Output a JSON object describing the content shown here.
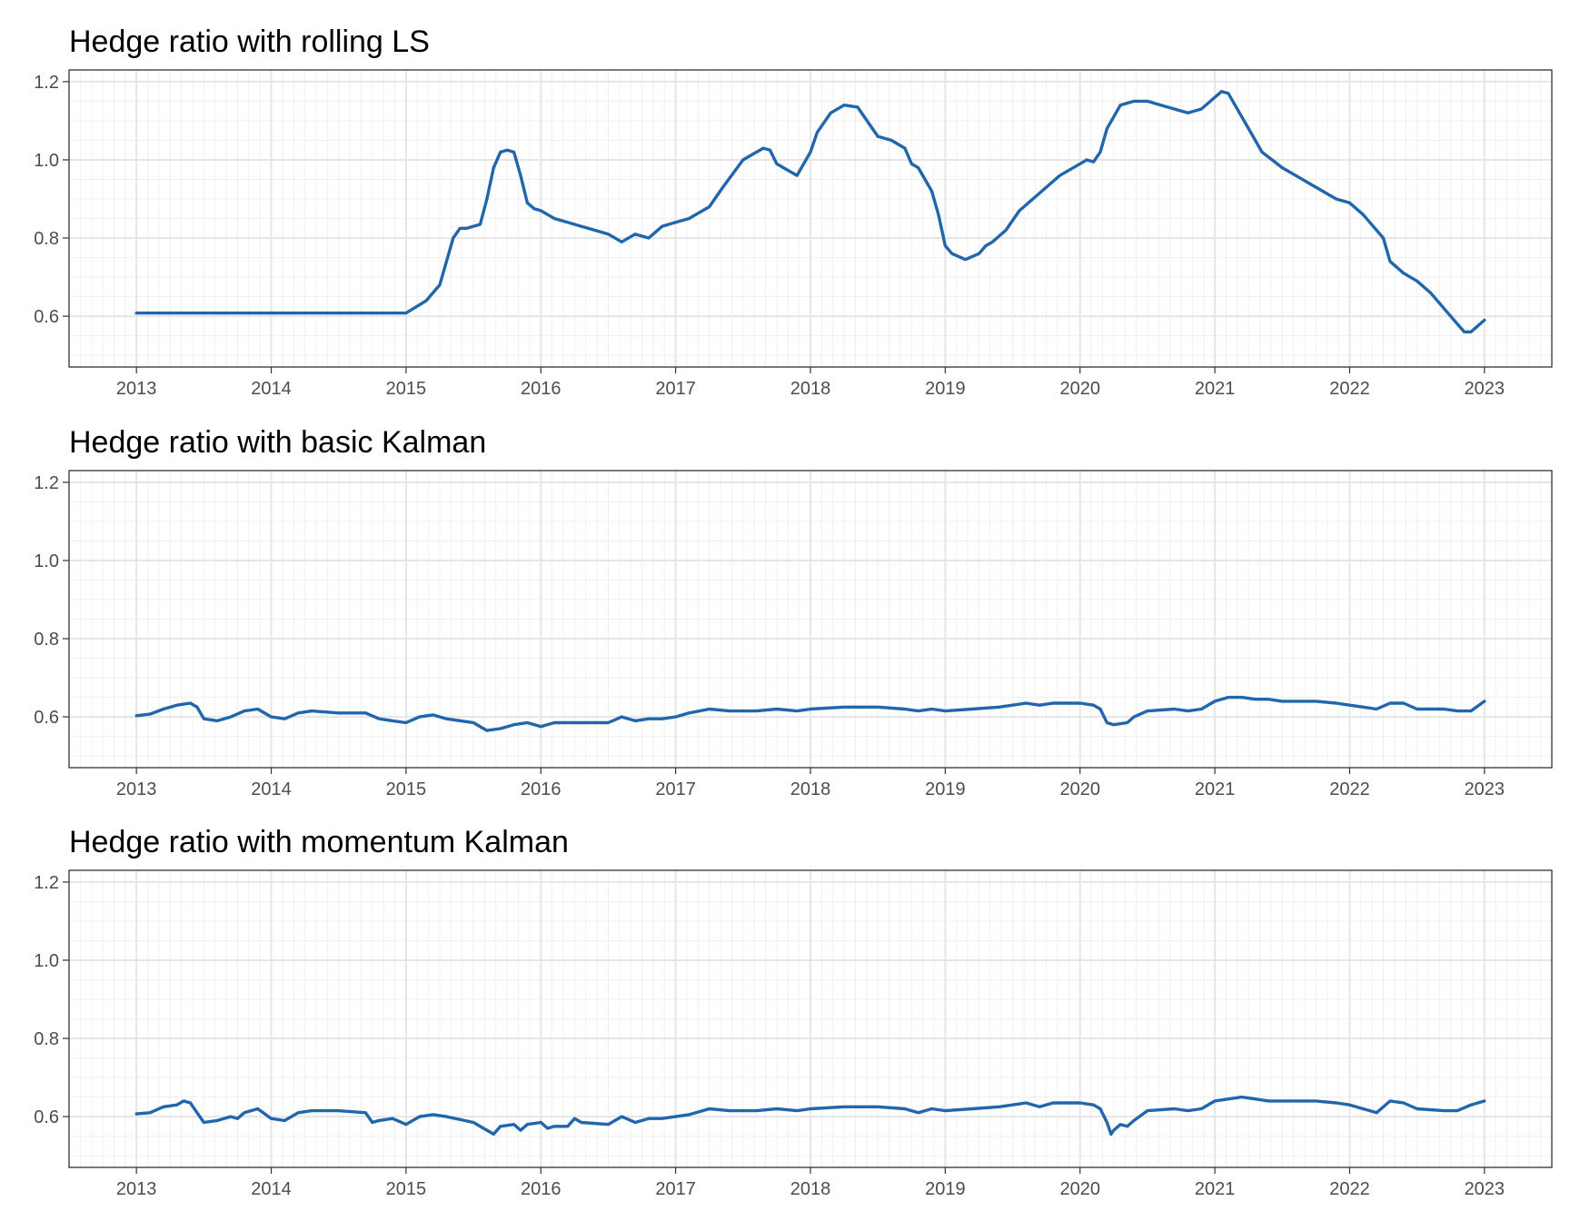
{
  "chart_data": [
    {
      "type": "line",
      "title": "Hedge ratio with rolling LS",
      "xlabel": "",
      "ylabel": "",
      "xlim": [
        2012.5,
        2023.5
      ],
      "ylim": [
        0.47,
        1.23
      ],
      "x_ticks": [
        "2013",
        "2014",
        "2015",
        "2016",
        "2017",
        "2018",
        "2019",
        "2020",
        "2021",
        "2022",
        "2023"
      ],
      "y_ticks": [
        "0.6",
        "0.8",
        "1.0",
        "1.2"
      ],
      "grid": true,
      "series_color": "#2166ac",
      "series": [
        {
          "x": [
            2013.0,
            2014.0,
            2015.0,
            2015.08,
            2015.15,
            2015.25,
            2015.3,
            2015.35,
            2015.4,
            2015.45,
            2015.5,
            2015.55,
            2015.6,
            2015.65,
            2015.7,
            2015.75,
            2015.8,
            2015.85,
            2015.9,
            2015.95,
            2016.0,
            2016.05,
            2016.1,
            2016.3,
            2016.5,
            2016.6,
            2016.7,
            2016.8,
            2016.9,
            2017.0,
            2017.1,
            2017.25,
            2017.35,
            2017.5,
            2017.6,
            2017.65,
            2017.7,
            2017.75,
            2017.8,
            2017.9,
            2018.0,
            2018.05,
            2018.15,
            2018.25,
            2018.35,
            2018.4,
            2018.5,
            2018.6,
            2018.7,
            2018.75,
            2018.8,
            2018.9,
            2018.95,
            2019.0,
            2019.05,
            2019.15,
            2019.25,
            2019.3,
            2019.35,
            2019.45,
            2019.55,
            2019.65,
            2019.75,
            2019.85,
            2020.0,
            2020.05,
            2020.1,
            2020.15,
            2020.2,
            2020.3,
            2020.4,
            2020.5,
            2020.6,
            2020.7,
            2020.8,
            2020.9,
            2021.0,
            2021.05,
            2021.1,
            2021.15,
            2021.25,
            2021.35,
            2021.5,
            2021.6,
            2021.75,
            2021.9,
            2022.0,
            2022.1,
            2022.15,
            2022.25,
            2022.3,
            2022.4,
            2022.5,
            2022.6,
            2022.75,
            2022.85,
            2022.9,
            2023.0
          ],
          "values": [
            0.608,
            0.608,
            0.608,
            0.625,
            0.64,
            0.68,
            0.74,
            0.8,
            0.825,
            0.825,
            0.83,
            0.835,
            0.9,
            0.98,
            1.02,
            1.025,
            1.02,
            0.96,
            0.89,
            0.875,
            0.87,
            0.86,
            0.85,
            0.83,
            0.81,
            0.79,
            0.81,
            0.8,
            0.83,
            0.84,
            0.85,
            0.88,
            0.93,
            1.0,
            1.02,
            1.03,
            1.025,
            0.99,
            0.98,
            0.96,
            1.02,
            1.07,
            1.12,
            1.14,
            1.135,
            1.11,
            1.06,
            1.05,
            1.03,
            0.99,
            0.98,
            0.92,
            0.86,
            0.78,
            0.76,
            0.745,
            0.76,
            0.78,
            0.79,
            0.82,
            0.87,
            0.9,
            0.93,
            0.96,
            0.99,
            1.0,
            0.995,
            1.02,
            1.08,
            1.14,
            1.15,
            1.15,
            1.14,
            1.13,
            1.12,
            1.13,
            1.16,
            1.175,
            1.17,
            1.14,
            1.08,
            1.02,
            0.98,
            0.96,
            0.93,
            0.9,
            0.89,
            0.86,
            0.84,
            0.8,
            0.74,
            0.71,
            0.69,
            0.66,
            0.6,
            0.56,
            0.56,
            0.59
          ]
        }
      ]
    },
    {
      "type": "line",
      "title": "Hedge ratio with basic Kalman",
      "xlabel": "",
      "ylabel": "",
      "xlim": [
        2012.5,
        2023.5
      ],
      "ylim": [
        0.47,
        1.23
      ],
      "x_ticks": [
        "2013",
        "2014",
        "2015",
        "2016",
        "2017",
        "2018",
        "2019",
        "2020",
        "2021",
        "2022",
        "2023"
      ],
      "y_ticks": [
        "0.6",
        "0.8",
        "1.0",
        "1.2"
      ],
      "grid": true,
      "series_color": "#2166ac",
      "series": [
        {
          "x": [
            2013.0,
            2013.1,
            2013.2,
            2013.3,
            2013.4,
            2013.45,
            2013.5,
            2013.6,
            2013.7,
            2013.8,
            2013.9,
            2014.0,
            2014.1,
            2014.2,
            2014.3,
            2014.5,
            2014.7,
            2014.8,
            2014.9,
            2015.0,
            2015.1,
            2015.2,
            2015.3,
            2015.5,
            2015.6,
            2015.7,
            2015.8,
            2015.9,
            2016.0,
            2016.1,
            2016.2,
            2016.3,
            2016.5,
            2016.6,
            2016.7,
            2016.8,
            2016.9,
            2017.0,
            2017.1,
            2017.25,
            2017.4,
            2017.6,
            2017.75,
            2017.9,
            2018.0,
            2018.25,
            2018.35,
            2018.5,
            2018.7,
            2018.8,
            2018.9,
            2019.0,
            2019.2,
            2019.4,
            2019.5,
            2019.6,
            2019.7,
            2019.8,
            2020.0,
            2020.1,
            2020.15,
            2020.2,
            2020.25,
            2020.35,
            2020.4,
            2020.5,
            2020.7,
            2020.8,
            2020.9,
            2021.0,
            2021.1,
            2021.2,
            2021.3,
            2021.4,
            2021.5,
            2021.6,
            2021.75,
            2021.9,
            2022.0,
            2022.1,
            2022.2,
            2022.3,
            2022.4,
            2022.5,
            2022.7,
            2022.8,
            2022.9,
            2023.0
          ],
          "values": [
            0.603,
            0.607,
            0.62,
            0.63,
            0.635,
            0.625,
            0.595,
            0.59,
            0.6,
            0.615,
            0.62,
            0.6,
            0.595,
            0.61,
            0.615,
            0.61,
            0.61,
            0.595,
            0.59,
            0.585,
            0.6,
            0.605,
            0.595,
            0.585,
            0.565,
            0.57,
            0.58,
            0.585,
            0.575,
            0.585,
            0.585,
            0.585,
            0.585,
            0.6,
            0.59,
            0.595,
            0.595,
            0.6,
            0.61,
            0.62,
            0.615,
            0.615,
            0.62,
            0.615,
            0.62,
            0.625,
            0.625,
            0.625,
            0.62,
            0.615,
            0.62,
            0.615,
            0.62,
            0.625,
            0.63,
            0.635,
            0.63,
            0.635,
            0.635,
            0.63,
            0.62,
            0.585,
            0.58,
            0.585,
            0.6,
            0.615,
            0.62,
            0.615,
            0.62,
            0.64,
            0.65,
            0.65,
            0.645,
            0.645,
            0.64,
            0.64,
            0.64,
            0.635,
            0.63,
            0.625,
            0.62,
            0.635,
            0.635,
            0.62,
            0.62,
            0.615,
            0.615,
            0.64
          ]
        }
      ]
    },
    {
      "type": "line",
      "title": "Hedge ratio with momentum Kalman",
      "xlabel": "",
      "ylabel": "",
      "xlim": [
        2012.5,
        2023.5
      ],
      "ylim": [
        0.47,
        1.23
      ],
      "x_ticks": [
        "2013",
        "2014",
        "2015",
        "2016",
        "2017",
        "2018",
        "2019",
        "2020",
        "2021",
        "2022",
        "2023"
      ],
      "y_ticks": [
        "0.6",
        "0.8",
        "1.0",
        "1.2"
      ],
      "grid": true,
      "series_color": "#2166ac",
      "series": [
        {
          "x": [
            2013.0,
            2013.1,
            2013.2,
            2013.3,
            2013.35,
            2013.4,
            2013.45,
            2013.5,
            2013.6,
            2013.7,
            2013.75,
            2013.8,
            2013.9,
            2014.0,
            2014.1,
            2014.2,
            2014.3,
            2014.5,
            2014.7,
            2014.75,
            2014.8,
            2014.9,
            2015.0,
            2015.1,
            2015.2,
            2015.3,
            2015.5,
            2015.6,
            2015.65,
            2015.7,
            2015.8,
            2015.85,
            2015.9,
            2016.0,
            2016.05,
            2016.1,
            2016.2,
            2016.25,
            2016.3,
            2016.5,
            2016.6,
            2016.7,
            2016.8,
            2016.9,
            2017.0,
            2017.1,
            2017.25,
            2017.4,
            2017.6,
            2017.75,
            2017.9,
            2018.0,
            2018.25,
            2018.35,
            2018.5,
            2018.7,
            2018.8,
            2018.9,
            2019.0,
            2019.2,
            2019.4,
            2019.5,
            2019.6,
            2019.7,
            2019.8,
            2020.0,
            2020.1,
            2020.15,
            2020.2,
            2020.23,
            2020.25,
            2020.3,
            2020.35,
            2020.4,
            2020.5,
            2020.7,
            2020.8,
            2020.9,
            2021.0,
            2021.1,
            2021.2,
            2021.3,
            2021.4,
            2021.5,
            2021.6,
            2021.75,
            2021.9,
            2022.0,
            2022.1,
            2022.2,
            2022.3,
            2022.4,
            2022.5,
            2022.7,
            2022.8,
            2022.9,
            2023.0
          ],
          "values": [
            0.607,
            0.61,
            0.625,
            0.63,
            0.64,
            0.635,
            0.61,
            0.585,
            0.59,
            0.6,
            0.595,
            0.61,
            0.62,
            0.595,
            0.59,
            0.61,
            0.615,
            0.615,
            0.61,
            0.585,
            0.59,
            0.595,
            0.58,
            0.6,
            0.605,
            0.6,
            0.585,
            0.565,
            0.555,
            0.575,
            0.58,
            0.565,
            0.58,
            0.585,
            0.57,
            0.575,
            0.575,
            0.595,
            0.585,
            0.58,
            0.6,
            0.585,
            0.595,
            0.595,
            0.6,
            0.605,
            0.62,
            0.615,
            0.615,
            0.62,
            0.615,
            0.62,
            0.625,
            0.625,
            0.625,
            0.62,
            0.61,
            0.62,
            0.615,
            0.62,
            0.625,
            0.63,
            0.635,
            0.625,
            0.635,
            0.635,
            0.63,
            0.62,
            0.585,
            0.555,
            0.565,
            0.58,
            0.575,
            0.59,
            0.615,
            0.62,
            0.615,
            0.62,
            0.64,
            0.645,
            0.65,
            0.645,
            0.64,
            0.64,
            0.64,
            0.64,
            0.635,
            0.63,
            0.62,
            0.61,
            0.64,
            0.635,
            0.62,
            0.615,
            0.615,
            0.63,
            0.64
          ]
        }
      ]
    }
  ]
}
